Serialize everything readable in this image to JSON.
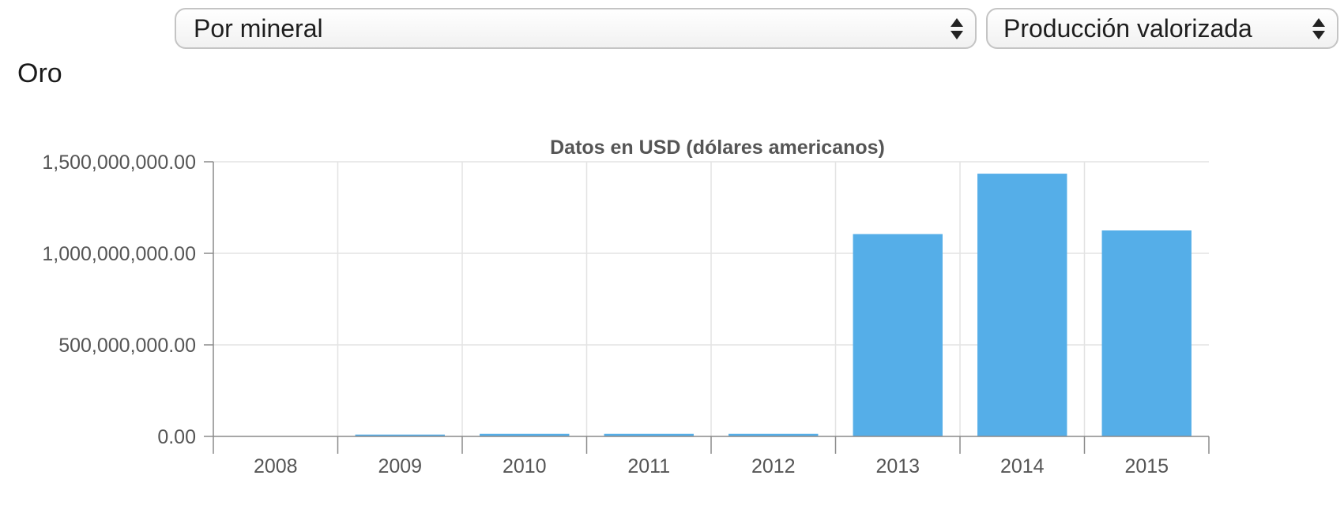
{
  "controls": {
    "mineral_select": {
      "selected": "Por mineral"
    },
    "metric_select": {
      "selected": "Producción valorizada"
    }
  },
  "section": {
    "title": "Oro"
  },
  "colors": {
    "bar": "#55aee8",
    "grid": "#e3e3e3",
    "axis": "#8a8a8a"
  },
  "chart_data": {
    "type": "bar",
    "title": "Datos en USD (dólares americanos)",
    "xlabel": "",
    "ylabel": "",
    "categories": [
      "2008",
      "2009",
      "2010",
      "2011",
      "2012",
      "2013",
      "2014",
      "2015"
    ],
    "values": [
      0,
      10000000,
      14000000,
      14000000,
      14000000,
      1105000000,
      1435000000,
      1125000000
    ],
    "ylim": [
      0,
      1500000000
    ],
    "y_ticks": [
      0,
      500000000,
      1000000000,
      1500000000
    ],
    "y_tick_labels": [
      "0.00",
      "500,000,000.00",
      "1,000,000,000.00",
      "1,500,000,000.00"
    ],
    "grid": true,
    "legend": "none"
  }
}
